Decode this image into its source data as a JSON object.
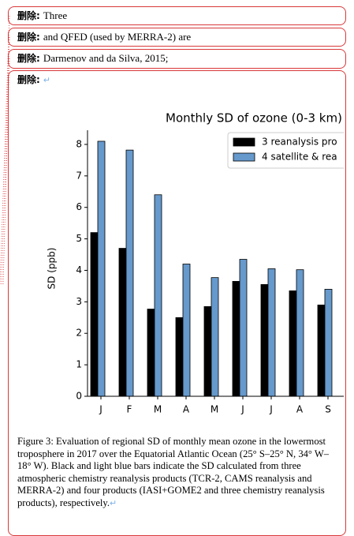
{
  "deletions": [
    {
      "label": "删除:",
      "text": "Three"
    },
    {
      "label": "删除:",
      "text": "and QFED (used by MERRA-2) are"
    },
    {
      "label": "删除:",
      "text": "Darmenov and da Silva, 2015;"
    },
    {
      "label": "删除:"
    }
  ],
  "chart_data": {
    "type": "bar",
    "title": "Monthly SD of ozone (0-3 km)",
    "y_label": "SD (ppb)",
    "categories": [
      "J",
      "F",
      "M",
      "A",
      "M",
      "J",
      "J",
      "A",
      "S"
    ],
    "series": [
      {
        "name": "3 reanalysis pro",
        "color": "#000000",
        "values": [
          5.2,
          4.7,
          2.77,
          2.5,
          2.85,
          3.65,
          3.55,
          3.35,
          2.9
        ]
      },
      {
        "name": "4 satellite & rea",
        "color": "#6699cc",
        "values": [
          8.1,
          7.82,
          6.4,
          4.2,
          3.77,
          4.35,
          4.05,
          4.02,
          3.4
        ]
      }
    ],
    "ylim": [
      0,
      8.45
    ],
    "yticks": [
      0,
      1,
      2,
      3,
      4,
      5,
      6,
      7,
      8
    ],
    "legend": "upper right"
  },
  "caption": "Figure 3: Evaluation of regional SD of monthly mean ozone in the lowermost troposphere in 2017 over the Equatorial Atlantic Ocean (25° S–25° N, 34° W–18° W). Black and light blue bars indicate the SD calculated from three atmospheric chemistry reanalysis products (TCR-2, CAMS reanalysis and MERRA-2) and four products (IASI+GOME2 and three chemistry reanalysis products), respectively."
}
